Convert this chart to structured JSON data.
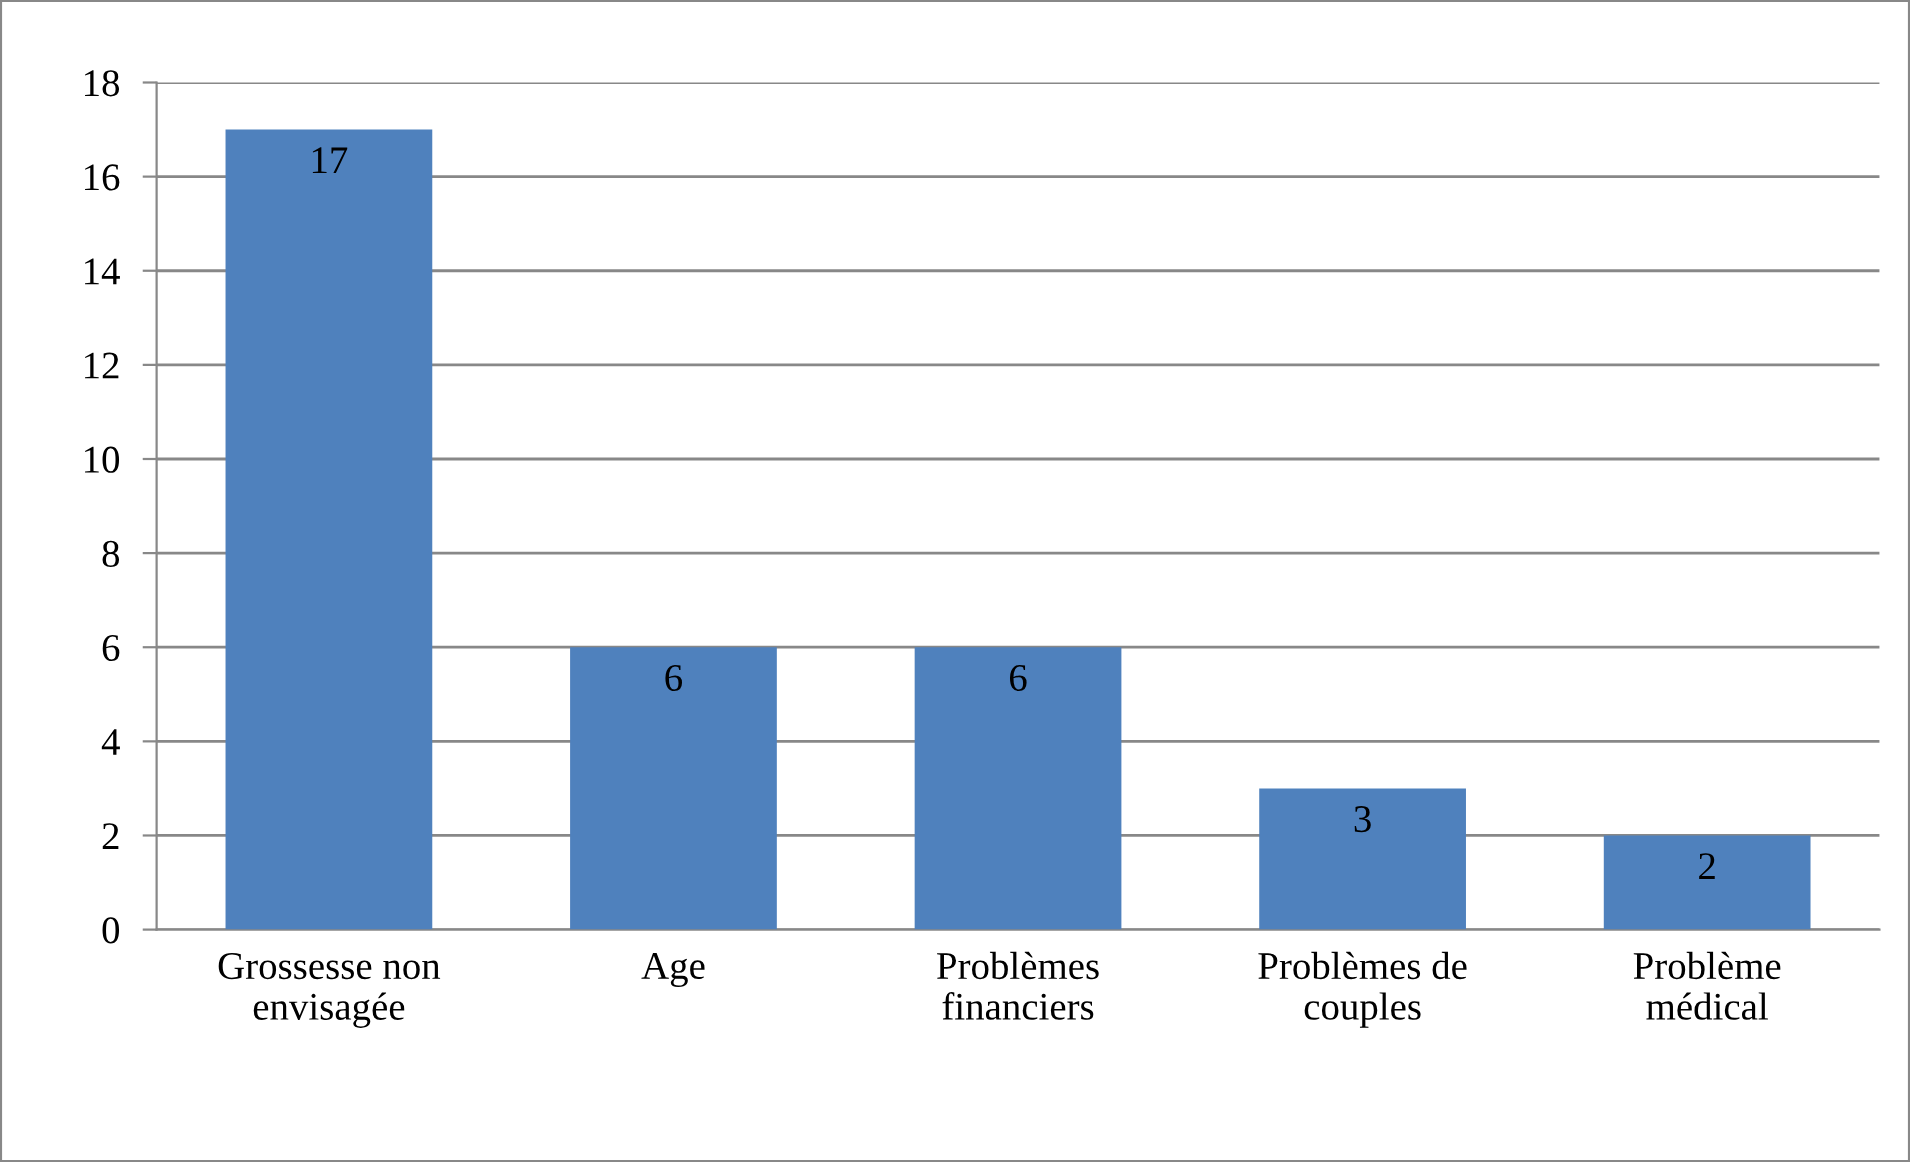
{
  "chart_data": {
    "type": "bar",
    "categories": [
      "Grossesse non envisagée",
      "Age",
      "Problèmes financiers",
      "Problèmes de couples",
      "Problème médical"
    ],
    "values": [
      17,
      6,
      6,
      3,
      2
    ],
    "color": "#4f81bd",
    "ylim": [
      0,
      18
    ],
    "yticks": [
      0,
      2,
      4,
      6,
      8,
      10,
      12,
      14,
      16,
      18
    ],
    "grid": "y",
    "data_labels": true,
    "legend": false
  }
}
